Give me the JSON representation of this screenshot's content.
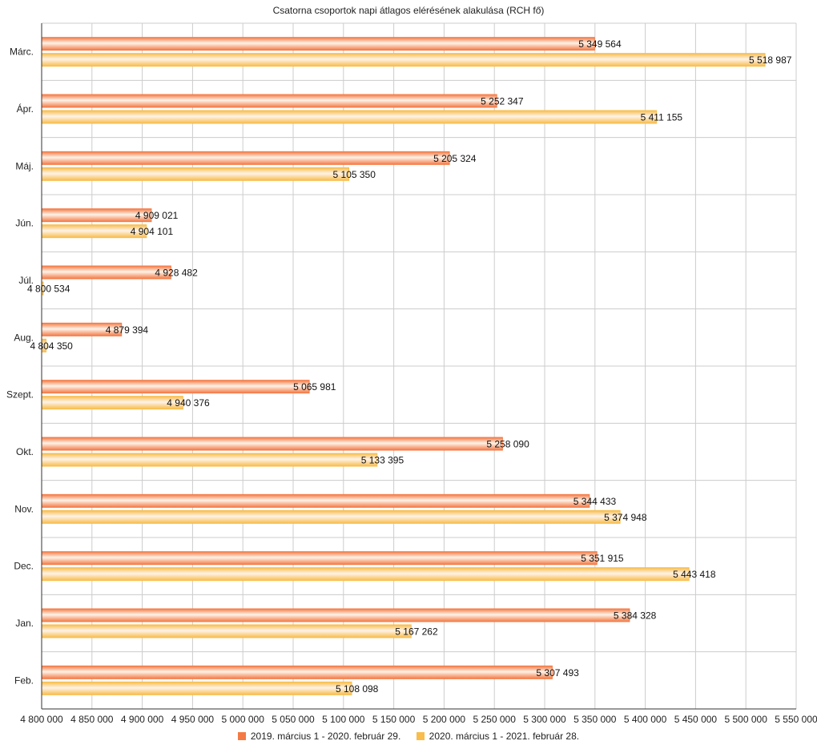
{
  "chart_data": {
    "type": "bar",
    "orientation": "horizontal",
    "title": "Csatorna csoportok napi átlagos elérésének alakulása (RCH fő)",
    "categories": [
      "Márc.",
      "Ápr.",
      "Máj.",
      "Jún.",
      "Júl.",
      "Aug.",
      "Szept.",
      "Okt.",
      "Nov.",
      "Dec.",
      "Jan.",
      "Feb."
    ],
    "series": [
      {
        "name": "2019. március 1 - 2020. február 29.",
        "color": "#f47a45",
        "values": [
          5349564,
          5252347,
          5205324,
          4909021,
          4928482,
          4879394,
          5065981,
          5258090,
          5344433,
          5351915,
          5384328,
          5307493
        ],
        "labels": [
          "5 349 564",
          "5 252 347",
          "5 205 324",
          "4 909 021",
          "4 928 482",
          "4 879 394",
          "5 065 981",
          "5 258 090",
          "5 344 433",
          "5 351 915",
          "5 384 328",
          "5 307 493"
        ]
      },
      {
        "name": "2020. március 1 - 2021. február 28.",
        "color": "#f8bd4c",
        "values": [
          5518987,
          5411155,
          5105350,
          4904101,
          4800534,
          4804350,
          4940376,
          5133395,
          5374948,
          5443418,
          5167262,
          5108098
        ],
        "labels": [
          "5 518 987",
          "5 411 155",
          "5 105 350",
          "4 904 101",
          "4 800 534",
          "4 804 350",
          "4 940 376",
          "5 133 395",
          "5 374 948",
          "5 443 418",
          "5 167 262",
          "5 108 098"
        ]
      }
    ],
    "xlim": [
      4800000,
      5550000
    ],
    "xticks": [
      4800000,
      4850000,
      4900000,
      4950000,
      5000000,
      5050000,
      5100000,
      5150000,
      5200000,
      5250000,
      5300000,
      5350000,
      5400000,
      5450000,
      5500000,
      5550000
    ],
    "xtick_labels": [
      "4 800 000",
      "4 850 000",
      "4 900 000",
      "4 950 000",
      "5 000 000",
      "5 050 000",
      "5 100 000",
      "5 150 000",
      "5 200 000",
      "5 250 000",
      "5 300 000",
      "5 350 000",
      "5 400 000",
      "5 450 000",
      "5 500 000",
      "5 550 000"
    ],
    "grid": true,
    "legend_position": "bottom-center"
  }
}
